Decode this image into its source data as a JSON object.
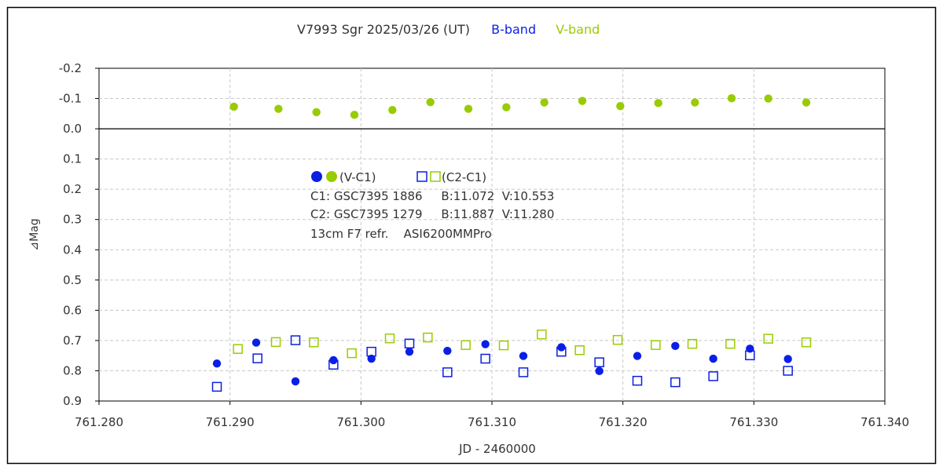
{
  "chart_data": {
    "type": "scatter",
    "title": {
      "main": "V7993 Sgr   2025/03/26 (UT)",
      "b_label": "B-band",
      "v_label": "V-band"
    },
    "xlabel": "JD - 2460000",
    "ylabel": "⊿Mag",
    "xlim": [
      761.28,
      761.34
    ],
    "ylim": [
      -0.2,
      0.9
    ],
    "y_inverted": true,
    "x_ticks": [
      "761.280",
      "761.290",
      "761.300",
      "761.310",
      "761.320",
      "761.330",
      "761.340"
    ],
    "y_ticks": [
      "-0.2",
      "-0.1",
      "0.0",
      "0.1",
      "0.2",
      "0.3",
      "0.4",
      "0.5",
      "0.6",
      "0.7",
      "0.8",
      "0.9"
    ],
    "x_tick_values": [
      761.28,
      761.29,
      761.3,
      761.31,
      761.32,
      761.33,
      761.34
    ],
    "y_tick_values": [
      -0.2,
      -0.1,
      0.0,
      0.1,
      0.2,
      0.3,
      0.4,
      0.5,
      0.6,
      0.7,
      0.8,
      0.9
    ],
    "grid": true,
    "zero_line": true,
    "colors": {
      "b_band": "#0a1fe6",
      "v_band": "#99cc00",
      "grid": "#c8c8c8",
      "axis": "#000000"
    },
    "legend": {
      "line1": "(V-C1)",
      "line1b": "(C2-C1)",
      "c1": "C1: GSC7395 1886     B:11.072  V:10.553",
      "c2": "C2: GSC7395 1279     B:11.887  V:11.280",
      "instrument": "13cm F7 refr.    ASI6200MMPro"
    },
    "series": [
      {
        "key": "v_minus_c1_V",
        "band": "V",
        "marker": "filled-circle",
        "x": [
          761.2903,
          761.2937,
          761.2966,
          761.2995,
          761.3024,
          761.3053,
          761.3082,
          761.3111,
          761.314,
          761.3169,
          761.3198,
          761.3227,
          761.3255,
          761.3283,
          761.3311,
          761.334
        ],
        "y": [
          -0.073,
          -0.066,
          -0.055,
          -0.046,
          -0.062,
          -0.088,
          -0.066,
          -0.071,
          -0.087,
          -0.092,
          -0.075,
          -0.085,
          -0.087,
          -0.101,
          -0.1,
          -0.087
        ]
      },
      {
        "key": "v_minus_c1_B",
        "band": "B",
        "marker": "filled-circle",
        "x": [
          761.289,
          761.292,
          761.295,
          761.2979,
          761.3008,
          761.3037,
          761.3066,
          761.3095,
          761.3124,
          761.3153,
          761.3182,
          761.3211,
          761.324,
          761.3269,
          761.3297,
          761.3326
        ],
        "y": [
          0.776,
          0.707,
          0.835,
          0.765,
          0.76,
          0.737,
          0.734,
          0.712,
          0.751,
          0.722,
          0.801,
          0.751,
          0.718,
          0.76,
          0.727,
          0.761
        ]
      },
      {
        "key": "c2_minus_c1_V",
        "band": "V",
        "marker": "open-square",
        "x": [
          761.2906,
          761.2935,
          761.2964,
          761.2993,
          761.3022,
          761.3051,
          761.308,
          761.3109,
          761.3138,
          761.3167,
          761.3196,
          761.3225,
          761.3253,
          761.3282,
          761.3311,
          761.334
        ],
        "y": [
          0.728,
          0.705,
          0.706,
          0.742,
          0.693,
          0.69,
          0.715,
          0.716,
          0.68,
          0.732,
          0.698,
          0.715,
          0.711,
          0.711,
          0.694,
          0.706
        ]
      },
      {
        "key": "c2_minus_c1_B",
        "band": "B",
        "marker": "open-square",
        "x": [
          761.289,
          761.2921,
          761.295,
          761.2979,
          761.3008,
          761.3037,
          761.3066,
          761.3095,
          761.3124,
          761.3153,
          761.3182,
          761.3211,
          761.324,
          761.3269,
          761.3297,
          761.3326
        ],
        "y": [
          0.853,
          0.759,
          0.699,
          0.78,
          0.737,
          0.71,
          0.805,
          0.76,
          0.805,
          0.737,
          0.772,
          0.833,
          0.838,
          0.818,
          0.749,
          0.8
        ]
      }
    ]
  }
}
